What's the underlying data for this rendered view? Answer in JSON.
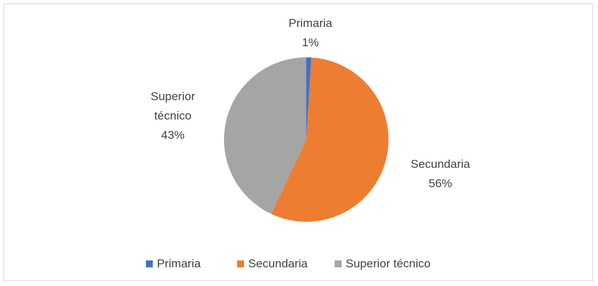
{
  "chart_data": {
    "type": "pie",
    "categories": [
      "Primaria",
      "Secundaria",
      "Superior técnico"
    ],
    "values": [
      1,
      56,
      43
    ],
    "value_labels": [
      "1%",
      "56%",
      "43%"
    ],
    "colors": [
      "#4472c4",
      "#ed7d31",
      "#a5a5a5"
    ],
    "legend": "bottom"
  }
}
